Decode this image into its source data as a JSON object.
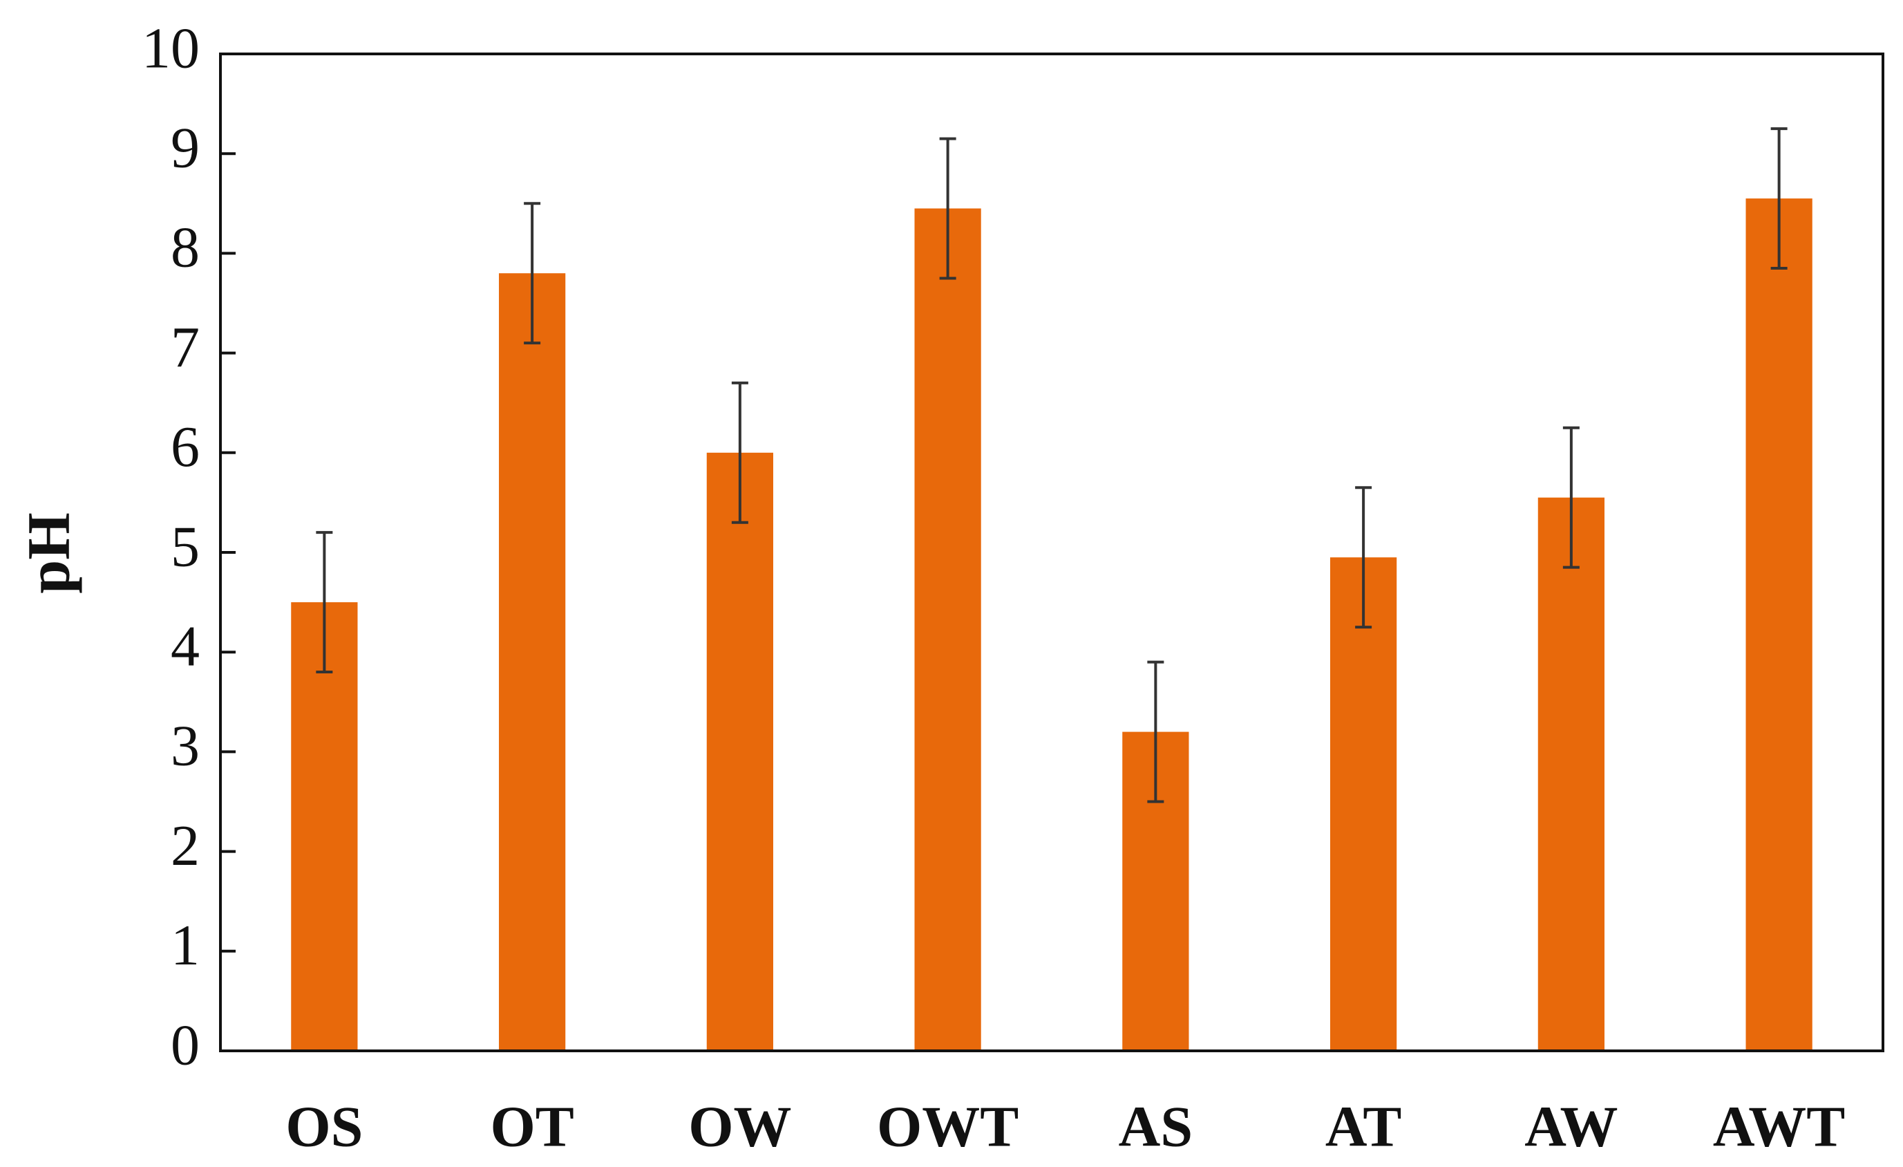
{
  "chart_data": {
    "type": "bar",
    "y_label": "pH",
    "categories": [
      "OS",
      "OT",
      "OW",
      "OWT",
      "AS",
      "AT",
      "AW",
      "AWT"
    ],
    "series": [
      {
        "color": "#e8690b",
        "values": [
          4.5,
          7.8,
          6.0,
          8.45,
          3.2,
          4.95,
          5.55,
          8.55
        ],
        "errors": [
          0.7,
          0.7,
          0.7,
          0.7,
          0.7,
          0.7,
          0.7,
          0.7
        ]
      }
    ],
    "ylim": [
      0,
      10
    ],
    "yticks": [
      0,
      1,
      2,
      3,
      4,
      5,
      6,
      7,
      8,
      9,
      10
    ]
  }
}
